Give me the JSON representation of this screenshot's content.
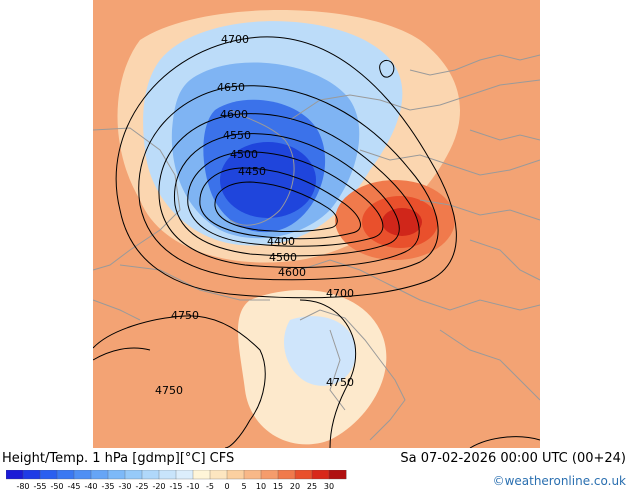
{
  "header": {
    "title": "Height/Temp. 1 hPa [gdmp][°C] CFS",
    "datetime": "Sa 07-02-2026 00:00 UTC (00+24)",
    "credit": "©weatheronline.co.uk"
  },
  "colors": {
    "background": "#f2a070",
    "land_lines": "#9a9a9a",
    "contour": "#000000",
    "credit_link": "#2a6fb0"
  },
  "map": {
    "contour_labels": [
      "4700",
      "4650",
      "4600",
      "4550",
      "4500",
      "4450",
      "4400",
      "4500",
      "4600",
      "4700",
      "4750",
      "4750",
      "4750"
    ]
  },
  "colorbar": {
    "labels": [
      "-80",
      "-55",
      "-50",
      "-45",
      "-40",
      "-35",
      "-30",
      "-25",
      "-20",
      "-15",
      "-10",
      "-5",
      "0",
      "5",
      "10",
      "15",
      "20",
      "25",
      "30"
    ],
    "colors": [
      "#1b1bd6",
      "#1f3be6",
      "#2a5ff0",
      "#3a78f2",
      "#4f8ff4",
      "#66a5f6",
      "#7db9f8",
      "#96caf9",
      "#b0d8fa",
      "#c8e4fb",
      "#dceefc",
      "#fff5d8",
      "#fde6c0",
      "#fbd0a0",
      "#f8b888",
      "#f59c6c",
      "#f07a4c",
      "#e9502c",
      "#d8281a",
      "#b01010"
    ]
  }
}
